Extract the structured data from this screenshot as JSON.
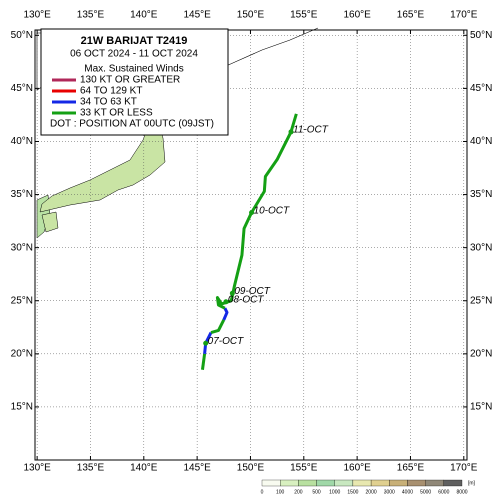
{
  "map": {
    "lon_range": [
      129.8,
      170.3
    ],
    "lat_range": [
      10,
      50.5
    ],
    "lon_ticks": [
      {
        "value": 130,
        "label": "130°E"
      },
      {
        "value": 135,
        "label": "135°E"
      },
      {
        "value": 140,
        "label": "140°E"
      },
      {
        "value": 145,
        "label": "145°E"
      },
      {
        "value": 150,
        "label": "150°E"
      },
      {
        "value": 155,
        "label": "155°E"
      },
      {
        "value": 160,
        "label": "160°E"
      },
      {
        "value": 165,
        "label": "165°E"
      },
      {
        "value": 170,
        "label": "170°E"
      }
    ],
    "lat_ticks": [
      {
        "value": 15,
        "label": "15°N"
      },
      {
        "value": 20,
        "label": "20°N"
      },
      {
        "value": 25,
        "label": "25°N"
      },
      {
        "value": 30,
        "label": "30°N"
      },
      {
        "value": 35,
        "label": "35°N"
      },
      {
        "value": 40,
        "label": "40°N"
      },
      {
        "value": 45,
        "label": "45°N"
      },
      {
        "value": 50,
        "label": "50°N"
      }
    ],
    "legend": {
      "title": "21W  BARIJAT  T2419",
      "period": "06 OCT 2024 - 11 OCT 2024",
      "heading": "Max. Sustained Winds",
      "entries": [
        {
          "label": "130 KT OR GREATER",
          "color": "#b0285a"
        },
        {
          "label": "64 TO 129 KT",
          "color": "#e80000"
        },
        {
          "label": "34 TO 63 KT",
          "color": "#1428e6"
        },
        {
          "label": "33 KT OR LESS",
          "color": "#14a014"
        }
      ],
      "note": "DOT : POSITION AT 00UTC (09JST)"
    },
    "track": [
      {
        "color": "#14a014",
        "points": [
          [
            145.5,
            18.5
          ],
          [
            145.7,
            20.0
          ]
        ]
      },
      {
        "color": "#1428e6",
        "points": [
          [
            145.7,
            20.0
          ],
          [
            145.8,
            21.0
          ],
          [
            146.3,
            22.0
          ]
        ]
      },
      {
        "color": "#14a014",
        "points": [
          [
            146.3,
            22.0
          ],
          [
            147.0,
            22.2
          ],
          [
            147.5,
            23.2
          ]
        ]
      },
      {
        "color": "#1428e6",
        "points": [
          [
            147.5,
            23.2
          ],
          [
            147.8,
            23.9
          ],
          [
            147.6,
            24.3
          ]
        ]
      },
      {
        "color": "#14a014",
        "points": [
          [
            147.6,
            24.3
          ],
          [
            147.0,
            24.6
          ],
          [
            146.9,
            25.3
          ],
          [
            147.3,
            24.7
          ],
          [
            148.2,
            25.0
          ],
          [
            148.5,
            26.4
          ],
          [
            149.2,
            29.3
          ],
          [
            149.4,
            31.8
          ],
          [
            150.1,
            33.3
          ],
          [
            151.3,
            35.3
          ],
          [
            151.4,
            36.7
          ],
          [
            152.5,
            38.3
          ],
          [
            153.8,
            40.9
          ],
          [
            154.3,
            42.6
          ]
        ]
      }
    ],
    "positions": [
      {
        "lon": 145.8,
        "lat": 21.0,
        "label": "07-OCT"
      },
      {
        "lon": 147.7,
        "lat": 24.9,
        "label": "08-OCT"
      },
      {
        "lon": 148.3,
        "lat": 25.7,
        "label": "09-OCT"
      },
      {
        "lon": 150.1,
        "lat": 33.3,
        "label": "10-OCT"
      },
      {
        "lon": 153.8,
        "lat": 40.9,
        "label": "11-OCT"
      }
    ],
    "colorbar": {
      "labels": [
        "0",
        "100",
        "200",
        "500",
        "1000",
        "1500",
        "2000",
        "3000",
        "4000",
        "5000",
        "6000",
        "8000"
      ],
      "colors": [
        "#f8fbf0",
        "#d8f0c0",
        "#b8e0a0",
        "#a0d8a8",
        "#c8e8c0",
        "#e8e8b0",
        "#e0d090",
        "#c8b078",
        "#a89070",
        "#908878",
        "#606060"
      ],
      "unit": "[m]"
    }
  }
}
